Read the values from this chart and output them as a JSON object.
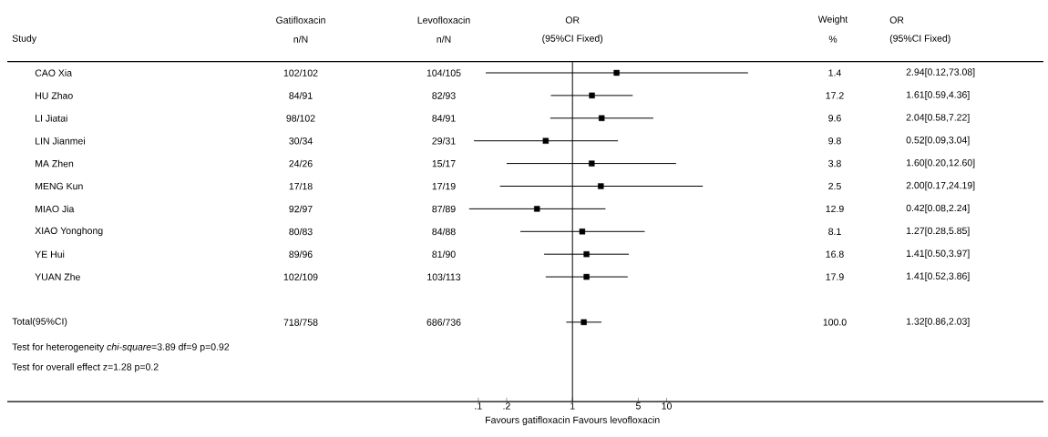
{
  "chart_data": {
    "type": "scatter",
    "orientation": "horizontal",
    "log": "x",
    "marker": "square",
    "color": "#000000",
    "categories": [
      "CAO Xia",
      "HU Zhao",
      "LI Jiatai",
      "LIN Jianmei",
      "MA Zhen",
      "MENG Kun",
      "MIAO Jia",
      "XIAO Yonghong",
      "YE Hui",
      "YUAN Zhe",
      null,
      "Total(95%CI)",
      null,
      null,
      null
    ],
    "values": [
      2.94,
      1.61,
      2.04,
      0.52,
      1.6,
      2.0,
      0.42,
      1.27,
      1.41,
      1.41,
      null,
      1.32,
      null,
      null,
      null
    ],
    "errors": [
      [
        0.12,
        73.08
      ],
      [
        0.59,
        4.36
      ],
      [
        0.58,
        7.22
      ],
      [
        0.09,
        3.04
      ],
      [
        0.2,
        12.6
      ],
      [
        0.17,
        24.19
      ],
      [
        0.08,
        2.24
      ],
      [
        0.28,
        5.85
      ],
      [
        0.5,
        3.97
      ],
      [
        0.52,
        3.86
      ],
      null,
      [
        0.86,
        2.03
      ],
      null,
      null,
      null
    ],
    "xlim": [
      1e-06,
      100000
    ],
    "xticks": [
      {
        "value": 0.1,
        "label": ".1"
      },
      {
        "value": 0.2,
        "label": ".2"
      },
      1,
      5,
      10
    ],
    "ref_lines": [
      {
        "axis": "x",
        "value": 1
      }
    ],
    "xlabel": "Favours gatifloxacin   Favours levofloxacin",
    "annotations": [
      "Study",
      "Gatifloxacin",
      "n/N",
      "Levofloxacin",
      "n/N",
      "OR",
      "(95%CI Fixed)",
      "Weight",
      "%",
      "OR",
      "(95%CI Fixed)",
      "102/102",
      "104/105",
      "1.4",
      "2.94[0.12,73.08]",
      "84/91",
      "82/93",
      "17.2",
      "1.61[0.59,4.36]",
      "98/102",
      "84/91",
      "9.6",
      "2.04[0.58,7.22]",
      "30/34",
      "29/31",
      "9.8",
      "0.52[0.09,3.04]",
      "24/26",
      "15/17",
      "3.8",
      "1.60[0.20,12.60]",
      "17/18",
      "17/19",
      "2.5",
      "2.00[0.17,24.19]",
      "92/97",
      "87/89",
      "12.9",
      "0.42[0.08,2.24]",
      "80/83",
      "84/88",
      "8.1",
      "1.27[0.28,5.85]",
      "89/96",
      "81/90",
      "16.8",
      "1.41[0.50,3.97]",
      "102/109",
      "103/113",
      "17.9",
      "1.41[0.52,3.86]",
      "718/758",
      "686/736",
      "100.0",
      "1.32[0.86,2.03]",
      "Test for heterogeneity *chi-square*=3.89 df=9 p=0.92",
      "Test for overall effect z=1.28 p=0.2"
    ]
  }
}
